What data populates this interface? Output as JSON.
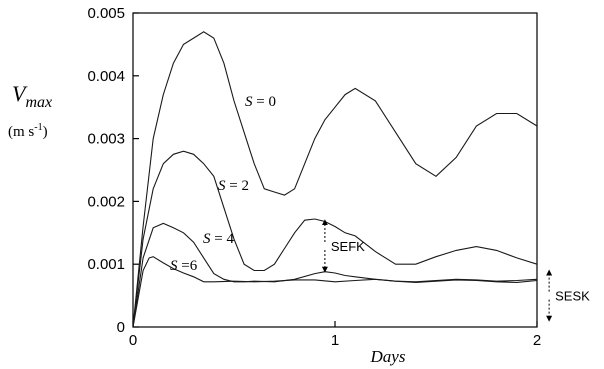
{
  "chart_data": {
    "type": "line",
    "title": "",
    "ylabel": {
      "symbol": "V",
      "subscript": "max",
      "units": "(m s-1)",
      "units_main": "(m s",
      "units_sup": "-1",
      "units_close": ")"
    },
    "xlabel": "Days",
    "xlim": [
      0,
      2
    ],
    "ylim": [
      0,
      0.005
    ],
    "xticks": [
      {
        "value": 0,
        "label": "0"
      },
      {
        "value": 1,
        "label": "1"
      },
      {
        "value": 2,
        "label": "2"
      }
    ],
    "yticks": [
      {
        "value": 0,
        "label": "0"
      },
      {
        "value": 0.001,
        "label": "0.001"
      },
      {
        "value": 0.002,
        "label": "0.002"
      },
      {
        "value": 0.003,
        "label": "0.003"
      },
      {
        "value": 0.004,
        "label": "0.004"
      },
      {
        "value": 0.005,
        "label": "0.005"
      }
    ],
    "grid": false,
    "series": [
      {
        "name": "S = 0",
        "label_symbol": "S",
        "label_rest": " = 0",
        "x": [
          0,
          0.05,
          0.1,
          0.15,
          0.2,
          0.25,
          0.3,
          0.35,
          0.4,
          0.45,
          0.5,
          0.55,
          0.6,
          0.65,
          0.7,
          0.75,
          0.8,
          0.85,
          0.9,
          0.95,
          1.0,
          1.05,
          1.1,
          1.2,
          1.3,
          1.4,
          1.5,
          1.6,
          1.7,
          1.8,
          1.9,
          2.0
        ],
        "y": [
          0,
          0.0016,
          0.003,
          0.0037,
          0.0042,
          0.0045,
          0.0046,
          0.0047,
          0.0046,
          0.0042,
          0.0036,
          0.0031,
          0.0026,
          0.0022,
          0.00215,
          0.0021,
          0.0022,
          0.0026,
          0.003,
          0.0033,
          0.0035,
          0.0037,
          0.0038,
          0.0036,
          0.0031,
          0.0026,
          0.0024,
          0.0027,
          0.0032,
          0.0034,
          0.0034,
          0.0032
        ]
      },
      {
        "name": "S = 2",
        "label_symbol": "S",
        "label_rest": " = 2",
        "x": [
          0,
          0.05,
          0.1,
          0.15,
          0.2,
          0.25,
          0.3,
          0.35,
          0.4,
          0.45,
          0.5,
          0.55,
          0.6,
          0.65,
          0.7,
          0.75,
          0.8,
          0.85,
          0.9,
          0.95,
          1.0,
          1.05,
          1.1,
          1.2,
          1.3,
          1.4,
          1.5,
          1.6,
          1.7,
          1.8,
          1.9,
          2.0
        ],
        "y": [
          0,
          0.0014,
          0.0022,
          0.0026,
          0.00275,
          0.0028,
          0.00275,
          0.0026,
          0.0024,
          0.0019,
          0.0014,
          0.001,
          0.0009,
          0.0009,
          0.001,
          0.00125,
          0.0015,
          0.0017,
          0.00172,
          0.00168,
          0.0016,
          0.0015,
          0.00145,
          0.0012,
          0.001,
          0.001,
          0.00112,
          0.00122,
          0.00128,
          0.00122,
          0.0011,
          0.001
        ]
      },
      {
        "name": "S = 4",
        "label_symbol": "S",
        "label_rest": " = 4",
        "x": [
          0,
          0.05,
          0.1,
          0.15,
          0.2,
          0.25,
          0.3,
          0.35,
          0.4,
          0.45,
          0.5,
          0.55,
          0.6,
          0.7,
          0.8,
          0.9,
          0.95,
          1.0,
          1.05,
          1.1,
          1.2,
          1.3,
          1.4,
          1.5,
          1.6,
          1.7,
          1.8,
          1.9,
          2.0
        ],
        "y": [
          0,
          0.0011,
          0.00158,
          0.00165,
          0.00158,
          0.0015,
          0.00135,
          0.0011,
          0.00085,
          0.00076,
          0.00072,
          0.00072,
          0.00073,
          0.00072,
          0.00076,
          0.00085,
          0.00088,
          0.00086,
          0.00082,
          0.0008,
          0.00076,
          0.00073,
          0.00072,
          0.00074,
          0.00076,
          0.00075,
          0.00073,
          0.00074,
          0.00076
        ]
      },
      {
        "name": "S =6",
        "label_symbol": "S",
        "label_rest": " =6",
        "x": [
          0,
          0.05,
          0.08,
          0.1,
          0.15,
          0.2,
          0.25,
          0.3,
          0.35,
          0.4,
          0.5,
          0.6,
          0.7,
          0.8,
          0.9,
          1.0,
          1.1,
          1.2,
          1.3,
          1.4,
          1.5,
          1.6,
          1.7,
          1.8,
          1.9,
          2.0
        ],
        "y": [
          0,
          0.0009,
          0.0011,
          0.00112,
          0.00102,
          0.00093,
          0.00086,
          0.0008,
          0.00072,
          0.00072,
          0.00073,
          0.00072,
          0.00073,
          0.00075,
          0.00075,
          0.00072,
          0.00074,
          0.00076,
          0.00073,
          0.00071,
          0.00073,
          0.00075,
          0.00074,
          0.00072,
          0.00071,
          0.00074
        ]
      }
    ],
    "annotations": [
      {
        "text": "SEFK",
        "x": 0.95,
        "y_top": 0.0017,
        "y_bottom": 0.00088
      },
      {
        "text": "SESK",
        "x": 2.06,
        "y_top": 0.0009,
        "y_bottom": 0.0001
      }
    ]
  }
}
